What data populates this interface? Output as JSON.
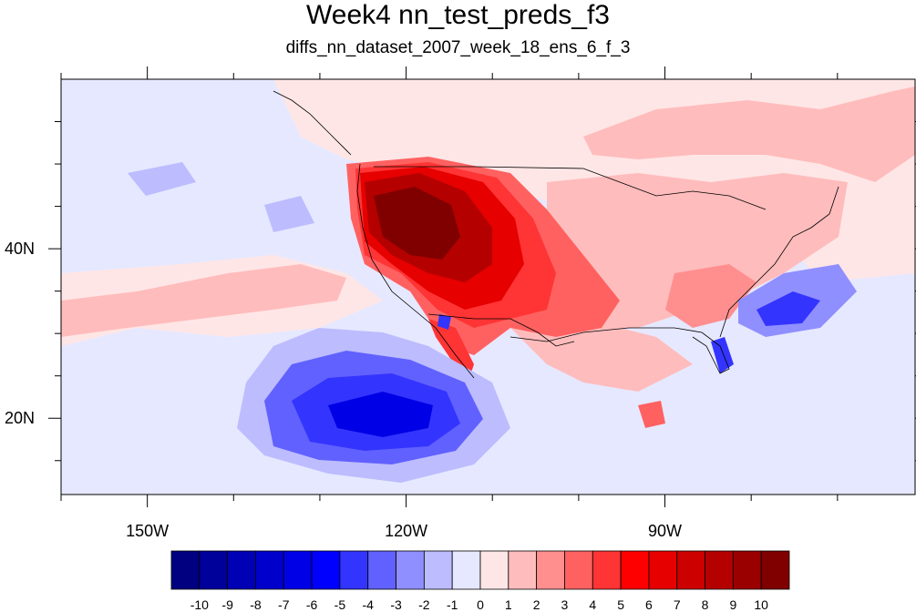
{
  "title": "Week4 nn_test_preds_f3",
  "subtitle": "diffs_nn_dataset_2007_week_18_ens_6_f_3",
  "map": {
    "lon_range": [
      -160,
      -61
    ],
    "lat_range": [
      11,
      60
    ],
    "lon_ticks": [
      {
        "value": -150,
        "label": "150W"
      },
      {
        "value": -120,
        "label": "120W"
      },
      {
        "value": -90,
        "label": "90W"
      }
    ],
    "lat_ticks": [
      {
        "value": 40,
        "label": "40N"
      },
      {
        "value": 20,
        "label": "20N"
      }
    ],
    "background_color": "#e6e8ff"
  },
  "colorbar": {
    "labels": [
      "-10",
      "-9",
      "-8",
      "-7",
      "-6",
      "-5",
      "-4",
      "-3",
      "-2",
      "-1",
      "0",
      "1",
      "2",
      "3",
      "4",
      "5",
      "6",
      "7",
      "8",
      "9",
      "10"
    ],
    "colors": [
      "#000080",
      "#00009b",
      "#0000b5",
      "#0000cd",
      "#0000e6",
      "#0000ff",
      "#3434ff",
      "#6161ff",
      "#8f8fff",
      "#bcbcff",
      "#e6e8ff",
      "#ffe6e6",
      "#ffbcbc",
      "#ff8f8f",
      "#ff6161",
      "#ff3434",
      "#ff0000",
      "#e60000",
      "#cd0000",
      "#b50000",
      "#9b0000",
      "#800000"
    ]
  }
}
